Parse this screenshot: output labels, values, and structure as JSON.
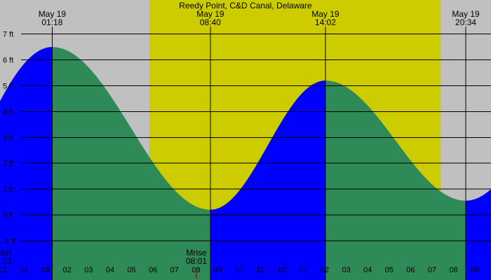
{
  "chart_data": {
    "type": "area",
    "title": "Reedy Point, C&D Canal, Delaware",
    "xlabel": "",
    "ylabel": "",
    "x_unit": "hours",
    "xlim": [
      22.0,
      33.75
    ],
    "ylim": [
      -1.8,
      7.3
    ],
    "y_ticks": [
      7,
      6,
      5,
      4,
      3,
      2,
      1,
      0,
      -1
    ],
    "y_tick_labels": [
      "7 ft",
      "6 ft",
      "5 ft",
      "4 ft",
      "3 ft",
      "2 ft",
      "1 ft",
      "0 ft",
      "-1 ft"
    ],
    "x_ticks": [
      23,
      24,
      25,
      26,
      27,
      28,
      29,
      30,
      31,
      32,
      33,
      34,
      35,
      36,
      37,
      38,
      39,
      40,
      41,
      42,
      43,
      44,
      45
    ],
    "x_tick_labels": [
      "11",
      "12",
      "01",
      "02",
      "03",
      "04",
      "05",
      "06",
      "07",
      "08",
      "09",
      "10",
      "11",
      "12",
      "01",
      "02",
      "03",
      "04",
      "05",
      "06",
      "07",
      "08",
      "09"
    ],
    "daylight": [
      29.83,
      43.4
    ],
    "colors": {
      "night": "#c0c0c0",
      "day": "#cccc00",
      "rising": "#0000ff",
      "falling": "#2e8b57",
      "gridline": "#000000"
    },
    "tide_extremes": [
      {
        "t": 25.3,
        "h": 6.5,
        "date": "May 19",
        "time": "01:18",
        "kind": "high"
      },
      {
        "t": 32.67,
        "h": 0.2,
        "date": "May 19",
        "time": "08:40",
        "kind": "low"
      },
      {
        "t": 38.03,
        "h": 5.2,
        "date": "May 19",
        "time": "14:02",
        "kind": "high"
      },
      {
        "t": 44.57,
        "h": 0.55,
        "date": "May 19",
        "time": "20:34",
        "kind": "low"
      }
    ],
    "tide_ends": {
      "start": 4.4,
      "end": 1.0
    },
    "annotations": [
      {
        "label": "set",
        "time": "01",
        "t": 22.0
      },
      {
        "label": "Mrise",
        "time": "08:01",
        "t": 32.02
      }
    ]
  }
}
